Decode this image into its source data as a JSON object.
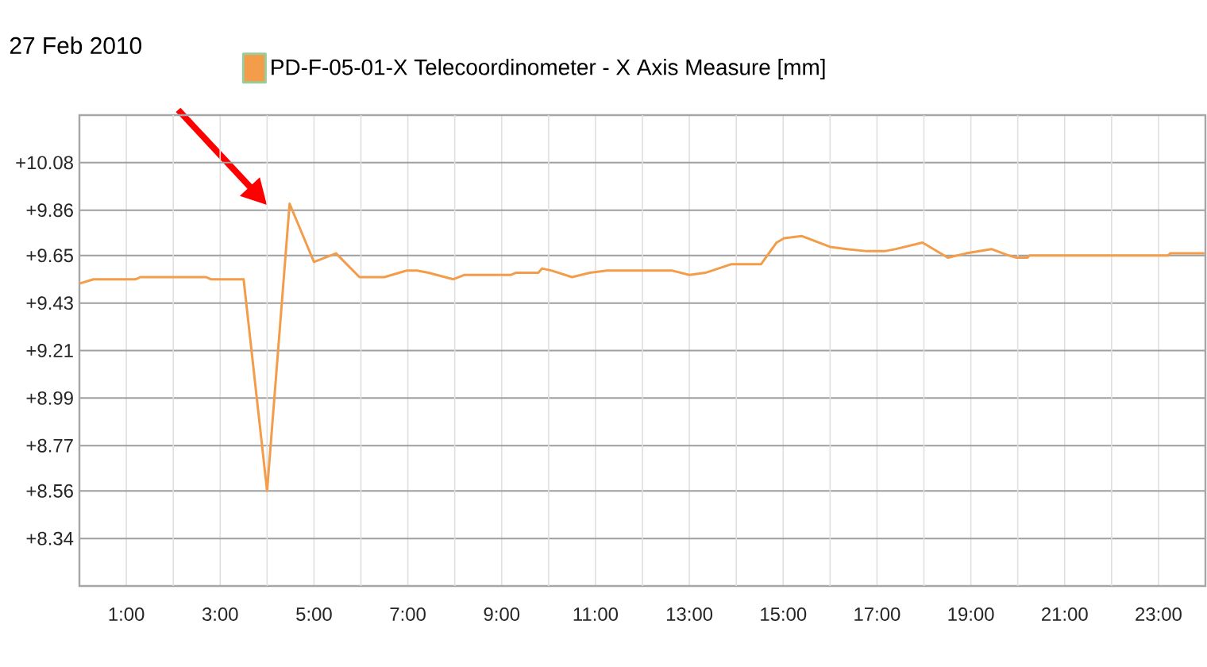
{
  "chart_data": {
    "type": "line",
    "title": "27 Feb 2010",
    "x": [
      0,
      0.3,
      1.2,
      1.3,
      2.7,
      2.8,
      3.5,
      4.0,
      4.48,
      5.0,
      5.47,
      5.97,
      6.5,
      6.97,
      7.2,
      7.44,
      7.97,
      8.2,
      9.19,
      9.3,
      9.78,
      9.86,
      10.07,
      10.5,
      10.88,
      11.24,
      12.64,
      13.0,
      13.34,
      13.9,
      14.53,
      14.86,
      15.02,
      15.4,
      16.0,
      16.36,
      16.79,
      17.16,
      17.4,
      17.97,
      18.51,
      18.9,
      19.44,
      19.81,
      19.98,
      20.2,
      20.25,
      23.2,
      23.25,
      23.98
    ],
    "series": [
      {
        "name": "PD-F-05-01-X Telecoordinometer - X Axis Measure [mm]",
        "color": "#f39c4a",
        "values": [
          9.52,
          9.54,
          9.54,
          9.55,
          9.55,
          9.54,
          9.54,
          8.56,
          9.89,
          9.62,
          9.66,
          9.55,
          9.55,
          9.58,
          9.58,
          9.57,
          9.54,
          9.56,
          9.56,
          9.57,
          9.57,
          9.59,
          9.58,
          9.55,
          9.57,
          9.58,
          9.58,
          9.56,
          9.57,
          9.61,
          9.61,
          9.71,
          9.73,
          9.74,
          9.69,
          9.68,
          9.67,
          9.67,
          9.68,
          9.71,
          9.64,
          9.66,
          9.68,
          9.65,
          9.64,
          9.64,
          9.65,
          9.65,
          9.66,
          9.66
        ]
      }
    ],
    "xlim": [
      0,
      24
    ],
    "xticks": [
      {
        "value": 1,
        "label": "1:00"
      },
      {
        "value": 2,
        "label": null
      },
      {
        "value": 3,
        "label": "3:00"
      },
      {
        "value": 4,
        "label": null
      },
      {
        "value": 5,
        "label": "5:00"
      },
      {
        "value": 6,
        "label": null
      },
      {
        "value": 7,
        "label": "7:00"
      },
      {
        "value": 8,
        "label": null
      },
      {
        "value": 9,
        "label": "9:00"
      },
      {
        "value": 10,
        "label": null
      },
      {
        "value": 11,
        "label": "11:00"
      },
      {
        "value": 12,
        "label": null
      },
      {
        "value": 13,
        "label": "13:00"
      },
      {
        "value": 14,
        "label": null
      },
      {
        "value": 15,
        "label": "15:00"
      },
      {
        "value": 16,
        "label": null
      },
      {
        "value": 17,
        "label": "17:00"
      },
      {
        "value": 18,
        "label": null
      },
      {
        "value": 19,
        "label": "19:00"
      },
      {
        "value": 20,
        "label": null
      },
      {
        "value": 21,
        "label": "21:00"
      },
      {
        "value": 22,
        "label": null
      },
      {
        "value": 23,
        "label": "23:00"
      }
    ],
    "ylim": [
      8.12,
      10.3
    ],
    "yticks": [
      {
        "value": 8.34,
        "label": "+8.34"
      },
      {
        "value": 8.56,
        "label": "+8.56"
      },
      {
        "value": 8.77,
        "label": "+8.77"
      },
      {
        "value": 8.99,
        "label": "+8.99"
      },
      {
        "value": 9.21,
        "label": "+9.21"
      },
      {
        "value": 9.43,
        "label": "+9.43"
      },
      {
        "value": 9.65,
        "label": "+9.65"
      },
      {
        "value": 9.86,
        "label": "+9.86"
      },
      {
        "value": 10.08,
        "label": "+10.08"
      }
    ],
    "grid": true,
    "legend": "top",
    "marker": "none",
    "line_style": "solid"
  }
}
